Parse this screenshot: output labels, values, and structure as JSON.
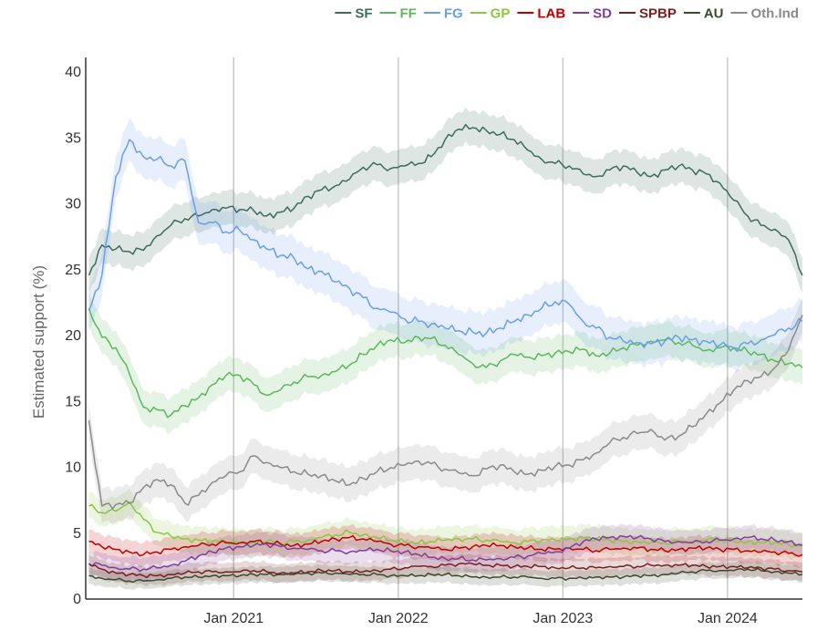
{
  "chart_data": {
    "type": "line",
    "title": "",
    "ylabel": "Estimated support (%)",
    "xlabel": "",
    "ylim": [
      0,
      40
    ],
    "xlim": [
      "2020-02-08",
      "2024-06-15"
    ],
    "grid": "vertical",
    "yticks": [
      "0",
      "5",
      "10",
      "15",
      "20",
      "25",
      "30",
      "35",
      "40"
    ],
    "xticks": [
      {
        "date": "2021-01-01",
        "label": "Jan 2021"
      },
      {
        "date": "2022-01-01",
        "label": "Jan 2022"
      },
      {
        "date": "2023-01-01",
        "label": "Jan 2023"
      },
      {
        "date": "2024-01-01",
        "label": "Jan 2024"
      }
    ],
    "legend_position": "top-right",
    "x": [
      "2020-02",
      "2020-03",
      "2020-04",
      "2020-05",
      "2020-06",
      "2020-07",
      "2020-08",
      "2020-09",
      "2020-10",
      "2020-11",
      "2020-12",
      "2021-01",
      "2021-02",
      "2021-03",
      "2021-04",
      "2021-05",
      "2021-06",
      "2021-07",
      "2021-08",
      "2021-09",
      "2021-10",
      "2021-11",
      "2021-12",
      "2022-01",
      "2022-02",
      "2022-03",
      "2022-04",
      "2022-05",
      "2022-06",
      "2022-07",
      "2022-08",
      "2022-09",
      "2022-10",
      "2022-11",
      "2022-12",
      "2023-01",
      "2023-02",
      "2023-03",
      "2023-04",
      "2023-05",
      "2023-06",
      "2023-07",
      "2023-08",
      "2023-09",
      "2023-10",
      "2023-11",
      "2023-12",
      "2024-01",
      "2024-02",
      "2024-03",
      "2024-04",
      "2024-05",
      "2024-06"
    ],
    "series": [
      {
        "name": "SF",
        "color": "#3d6b5e",
        "band": 1.3,
        "values": [
          24.5,
          26.8,
          26.5,
          26.3,
          26.4,
          27.5,
          28.3,
          28.8,
          29.0,
          29.5,
          29.6,
          29.5,
          29.4,
          29.0,
          29.3,
          29.6,
          30.5,
          31.0,
          31.3,
          31.8,
          32.7,
          32.9,
          32.6,
          32.8,
          33.0,
          33.5,
          34.8,
          35.6,
          35.7,
          35.5,
          35.2,
          34.8,
          34.0,
          33.3,
          33.0,
          32.8,
          32.2,
          32.0,
          32.5,
          32.8,
          32.3,
          32.0,
          32.5,
          32.8,
          32.5,
          32.2,
          31.5,
          30.2,
          29.0,
          28.3,
          28.0,
          27.2,
          24.5
        ]
      },
      {
        "name": "FF",
        "color": "#5cb85c",
        "band": 1.3,
        "values": [
          22.0,
          19.8,
          19.0,
          17.0,
          14.5,
          14.3,
          13.9,
          14.6,
          15.2,
          16.2,
          16.9,
          16.9,
          16.2,
          15.4,
          15.8,
          16.4,
          16.8,
          16.9,
          17.2,
          17.7,
          18.5,
          19.2,
          19.6,
          19.4,
          19.8,
          19.7,
          19.2,
          18.5,
          17.8,
          17.5,
          18.0,
          18.5,
          18.3,
          18.4,
          18.6,
          18.7,
          18.9,
          18.4,
          18.6,
          19.0,
          19.2,
          19.5,
          19.6,
          19.4,
          19.2,
          18.8,
          19.0,
          19.0,
          18.7,
          18.5,
          18.0,
          17.8,
          17.5
        ]
      },
      {
        "name": "FG",
        "color": "#6b9ee8",
        "band": 1.6,
        "values": [
          21.8,
          24.5,
          32.0,
          34.8,
          33.5,
          33.3,
          32.8,
          33.2,
          28.5,
          28.5,
          27.8,
          27.9,
          27.2,
          26.5,
          26.0,
          25.8,
          25.0,
          24.8,
          24.0,
          23.5,
          22.8,
          22.0,
          21.7,
          21.2,
          21.0,
          20.8,
          20.5,
          20.3,
          20.2,
          20.1,
          20.5,
          21.0,
          21.5,
          22.0,
          22.5,
          22.3,
          21.0,
          20.5,
          19.8,
          19.5,
          19.4,
          19.3,
          19.5,
          19.8,
          19.6,
          19.5,
          19.2,
          19.0,
          19.3,
          19.6,
          20.0,
          20.5,
          21.0
        ]
      },
      {
        "name": "GP",
        "color": "#8cc63f",
        "band": 1.0,
        "values": [
          7.0,
          6.5,
          6.6,
          7.3,
          6.0,
          5.0,
          4.7,
          4.5,
          4.4,
          4.3,
          4.3,
          4.2,
          4.2,
          4.3,
          4.2,
          4.3,
          4.4,
          4.6,
          4.8,
          5.0,
          4.8,
          4.6,
          4.4,
          4.3,
          4.2,
          4.3,
          4.4,
          4.5,
          4.5,
          4.4,
          4.3,
          4.2,
          4.3,
          4.4,
          4.4,
          4.5,
          4.6,
          4.5,
          4.4,
          4.3,
          4.3,
          4.2,
          4.2,
          4.3,
          4.3,
          4.4,
          4.4,
          4.3,
          4.3,
          4.2,
          4.2,
          4.1,
          4.0
        ]
      },
      {
        "name": "LAB",
        "color": "#c00000",
        "band": 0.9,
        "values": [
          4.3,
          3.9,
          3.7,
          3.5,
          3.3,
          3.5,
          3.7,
          3.9,
          4.0,
          4.1,
          4.2,
          4.2,
          4.3,
          4.2,
          4.1,
          4.0,
          4.1,
          4.3,
          4.5,
          4.6,
          4.5,
          4.3,
          4.1,
          4.0,
          3.9,
          3.8,
          3.7,
          3.8,
          3.9,
          4.0,
          4.0,
          3.9,
          3.8,
          3.7,
          3.7,
          3.8,
          3.7,
          3.6,
          3.7,
          3.8,
          3.8,
          3.7,
          3.6,
          3.7,
          3.8,
          3.8,
          3.7,
          3.7,
          3.6,
          3.5,
          3.5,
          3.4,
          3.3
        ]
      },
      {
        "name": "SD",
        "color": "#7b3f9e",
        "band": 0.9,
        "values": [
          2.6,
          2.5,
          2.3,
          2.2,
          2.2,
          2.3,
          2.5,
          2.8,
          3.2,
          3.5,
          3.8,
          3.9,
          4.0,
          4.1,
          3.9,
          3.8,
          3.7,
          3.6,
          3.6,
          3.5,
          3.6,
          3.7,
          3.6,
          3.5,
          3.3,
          3.1,
          3.0,
          3.0,
          2.9,
          2.9,
          3.0,
          3.1,
          3.2,
          3.4,
          3.5,
          3.8,
          4.3,
          4.5,
          4.6,
          4.7,
          4.6,
          4.5,
          4.3,
          4.3,
          4.2,
          4.3,
          4.4,
          4.5,
          4.6,
          4.5,
          4.4,
          4.3,
          4.0
        ]
      },
      {
        "name": "SPBP",
        "color": "#7a1e1e",
        "band": 0.7,
        "values": [
          2.6,
          2.2,
          1.9,
          1.8,
          1.7,
          1.7,
          1.8,
          1.9,
          2.0,
          2.0,
          2.0,
          2.0,
          2.1,
          2.0,
          1.9,
          1.9,
          2.0,
          2.1,
          2.1,
          2.0,
          2.0,
          2.1,
          2.2,
          2.3,
          2.4,
          2.4,
          2.5,
          2.6,
          2.6,
          2.5,
          2.5,
          2.4,
          2.4,
          2.4,
          2.3,
          2.3,
          2.3,
          2.3,
          2.4,
          2.4,
          2.4,
          2.5,
          2.5,
          2.5,
          2.5,
          2.4,
          2.4,
          2.4,
          2.3,
          2.3,
          2.2,
          2.1,
          2.0
        ]
      },
      {
        "name": "AU",
        "color": "#3a4a2a",
        "band": 0.6,
        "values": [
          1.7,
          1.5,
          1.4,
          1.3,
          1.3,
          1.4,
          1.5,
          1.6,
          1.6,
          1.7,
          1.7,
          1.7,
          1.8,
          1.8,
          1.8,
          1.8,
          1.9,
          1.9,
          1.9,
          1.8,
          1.8,
          1.8,
          1.7,
          1.7,
          1.7,
          1.8,
          1.8,
          1.7,
          1.6,
          1.6,
          1.6,
          1.6,
          1.6,
          1.5,
          1.5,
          1.5,
          1.5,
          1.6,
          1.6,
          1.6,
          1.7,
          1.7,
          1.8,
          1.9,
          2.0,
          2.1,
          2.1,
          2.1,
          2.2,
          2.1,
          2.0,
          1.9,
          1.8
        ]
      },
      {
        "name": "Oth.Ind",
        "color": "#8a8a8a",
        "band": 1.3,
        "values": [
          13.5,
          7.0,
          7.1,
          7.2,
          8.4,
          9.0,
          8.6,
          7.2,
          7.8,
          8.8,
          9.3,
          9.6,
          10.8,
          10.3,
          9.9,
          9.6,
          9.4,
          9.3,
          8.9,
          8.6,
          9.1,
          9.6,
          9.9,
          10.1,
          10.4,
          10.2,
          9.8,
          9.5,
          9.3,
          9.8,
          10.1,
          9.6,
          9.4,
          9.7,
          10.0,
          10.1,
          10.5,
          11.0,
          11.8,
          12.2,
          12.5,
          12.8,
          12.0,
          12.3,
          13.0,
          14.0,
          14.8,
          15.8,
          16.5,
          16.8,
          17.5,
          18.8,
          21.5
        ]
      }
    ]
  }
}
